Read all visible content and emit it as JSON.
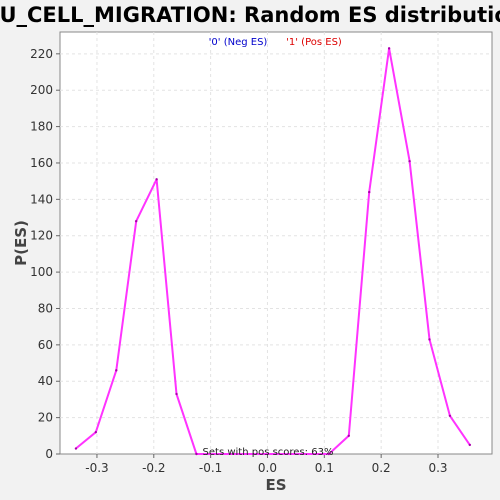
{
  "chart_data": {
    "type": "line",
    "title": "WU_CELL_MIGRATION: Random ES distribution",
    "xlabel": "ES",
    "ylabel": "P(ES)",
    "xlim": [
      -0.365,
      0.395
    ],
    "ylim": [
      0,
      232
    ],
    "xticks": [
      -0.3,
      -0.2,
      -0.1,
      0.0,
      0.1,
      0.2,
      0.3
    ],
    "xtick_labels": [
      "-0.3",
      "-0.2",
      "-0.1",
      "0.0",
      "0.1",
      "0.2",
      "0.3"
    ],
    "yticks": [
      0,
      20,
      40,
      60,
      80,
      100,
      120,
      140,
      160,
      180,
      200,
      220
    ],
    "ytick_labels": [
      "0",
      "20",
      "40",
      "60",
      "80",
      "100",
      "120",
      "140",
      "160",
      "180",
      "200",
      "220"
    ],
    "grid": true,
    "legend": {
      "placement": "top-center",
      "entries": [
        {
          "label": "'0' (Neg ES)",
          "color": "#0000cc"
        },
        {
          "label": "'1' (Pos ES)",
          "color": "#dd0000"
        }
      ]
    },
    "annotation": "Sets with pos scores: 63%",
    "series": [
      {
        "color": "#ff33ff",
        "points": [
          {
            "x": -0.337,
            "y": 3
          },
          {
            "x": -0.302,
            "y": 12
          },
          {
            "x": -0.266,
            "y": 46
          },
          {
            "x": -0.231,
            "y": 128
          },
          {
            "x": -0.195,
            "y": 151
          },
          {
            "x": -0.16,
            "y": 33
          },
          {
            "x": -0.125,
            "y": 0
          },
          {
            "x": 0.108,
            "y": 0
          },
          {
            "x": 0.143,
            "y": 10
          },
          {
            "x": 0.179,
            "y": 144
          },
          {
            "x": 0.214,
            "y": 223
          },
          {
            "x": 0.25,
            "y": 161
          },
          {
            "x": 0.285,
            "y": 63
          },
          {
            "x": 0.321,
            "y": 21
          },
          {
            "x": 0.356,
            "y": 5
          }
        ]
      }
    ]
  }
}
